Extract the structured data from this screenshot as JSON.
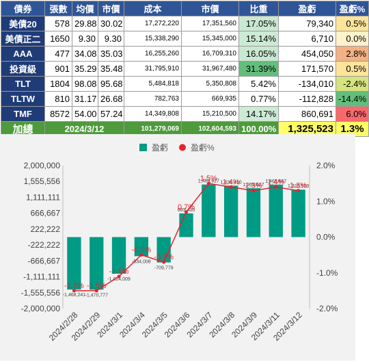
{
  "table": {
    "headers": [
      "債券",
      "張數",
      "均價",
      "市價",
      "成本",
      "市價",
      "比重",
      "盈虧",
      "盈虧%"
    ],
    "rows": [
      {
        "name": "美債20",
        "qty": "578",
        "avg": "29.88",
        "price": "30.02",
        "cost": "17,272,220",
        "value": "17,351,560",
        "weight": "17.05%",
        "pnl": "79,340",
        "pnl_pct": "0.5%",
        "weight_color": "#c9e8d2",
        "pct_color": "#fde49a"
      },
      {
        "name": "美債正二",
        "qty": "1650",
        "avg": "9.30",
        "price": "9.30",
        "cost": "15,338,290",
        "value": "15,345,000",
        "weight": "15.14%",
        "pnl": "6,710",
        "pnl_pct": "0.0%",
        "weight_color": "#cdeaD5",
        "pct_color": "#fff2cc"
      },
      {
        "name": "AAA",
        "qty": "477",
        "avg": "34.08",
        "price": "35.03",
        "cost": "16,255,260",
        "value": "16,709,310",
        "weight": "16.05%",
        "pnl": "454,050",
        "pnl_pct": "2.8%",
        "weight_color": "#c9e8d2",
        "pct_color": "#f4b183"
      },
      {
        "name": "投資級",
        "qty": "901",
        "avg": "35.29",
        "price": "35.48",
        "cost": "31,795,910",
        "value": "31,967,480",
        "weight": "31.39%",
        "pnl": "171,570",
        "pnl_pct": "0.5%",
        "weight_color": "#63be7b",
        "pct_color": "#fde49a"
      },
      {
        "name": "TLT",
        "qty": "1804",
        "avg": "98.08",
        "price": "95.68",
        "cost": "5,484,818",
        "value": "5,350,808",
        "weight": "5.42%",
        "pnl": "-134,010",
        "pnl_pct": "-2.4%",
        "weight_color": "#ffffff",
        "pct_color": "#d6e37f"
      },
      {
        "name": "TLTW",
        "qty": "810",
        "avg": "31.17",
        "price": "26.68",
        "cost": "782,763",
        "value": "669,935",
        "weight": "0.77%",
        "pnl": "-112,828",
        "pnl_pct": "-14.4%",
        "weight_color": "#ffffff",
        "pct_color": "#63be7b"
      },
      {
        "name": "TMF",
        "qty": "8572",
        "avg": "54.00",
        "price": "57.24",
        "cost": "14,349,808",
        "value": "15,210,500",
        "weight": "14.17%",
        "pnl": "860,691",
        "pnl_pct": "6.0%",
        "weight_color": "#cdead5",
        "pct_color": "#f8696b"
      }
    ],
    "total": {
      "label": "加總",
      "date": "2024/3/12",
      "cost": "101,279,069",
      "value": "102,604,593",
      "weight": "100.00%",
      "pnl": "1,325,523",
      "pnl_pct": "1.3%"
    }
  },
  "chart_data": {
    "type": "bar",
    "categories": [
      "2024/2/28",
      "2024/2/29",
      "2024/3/1",
      "2024/3/4",
      "2024/3/5",
      "2024/3/6",
      "2024/3/7",
      "2024/3/8",
      "2024/3/9",
      "2024/3/11",
      "2024/3/12"
    ],
    "series": [
      {
        "name": "盈虧",
        "type": "bar",
        "axis": "left",
        "color": "#009b84",
        "values": [
          -1468241,
          -1470777,
          -1024009,
          -534008,
          -709779,
          663400,
          1469927,
          1438410,
          1365627,
          1465667,
          1325523
        ],
        "labels": [
          "-1,468,241",
          "-1,470,777",
          "-1,024,009",
          "-534,008",
          "-709,779",
          "663,400",
          "1,469,927",
          "1,438,410",
          "1,365,627",
          "1,465,667",
          "1,325,523"
        ]
      },
      {
        "name": "盈虧%",
        "type": "line",
        "axis": "right",
        "color": "#e8212a",
        "values": [
          -1.5,
          -1.5,
          -1.1,
          -0.5,
          -0.7,
          0.7,
          1.5,
          1.4,
          1.3,
          1.4,
          1.3
        ],
        "labels": [
          "-1.5%",
          "-1.5%",
          "-1.1%",
          "-0.5%",
          "-0.7%",
          "0.7%",
          "1.5%",
          "1.4%",
          "1.3%",
          "1.4%",
          "1.3%"
        ]
      }
    ],
    "left_ticks": [
      "2,000,000",
      "1,555,556",
      "1,111,111",
      "666,667",
      "222,222",
      "-222,222",
      "-666,667",
      "-1,111,111",
      "-1,555,556",
      "-2,000,000"
    ],
    "right_ticks": [
      "2.0%",
      "1.0%",
      "0.0%",
      "-1.0%",
      "-2.0%"
    ],
    "ylim": [
      -2000000,
      2000000
    ],
    "y2lim": [
      -2.0,
      2.0
    ],
    "legend_position": "top"
  }
}
